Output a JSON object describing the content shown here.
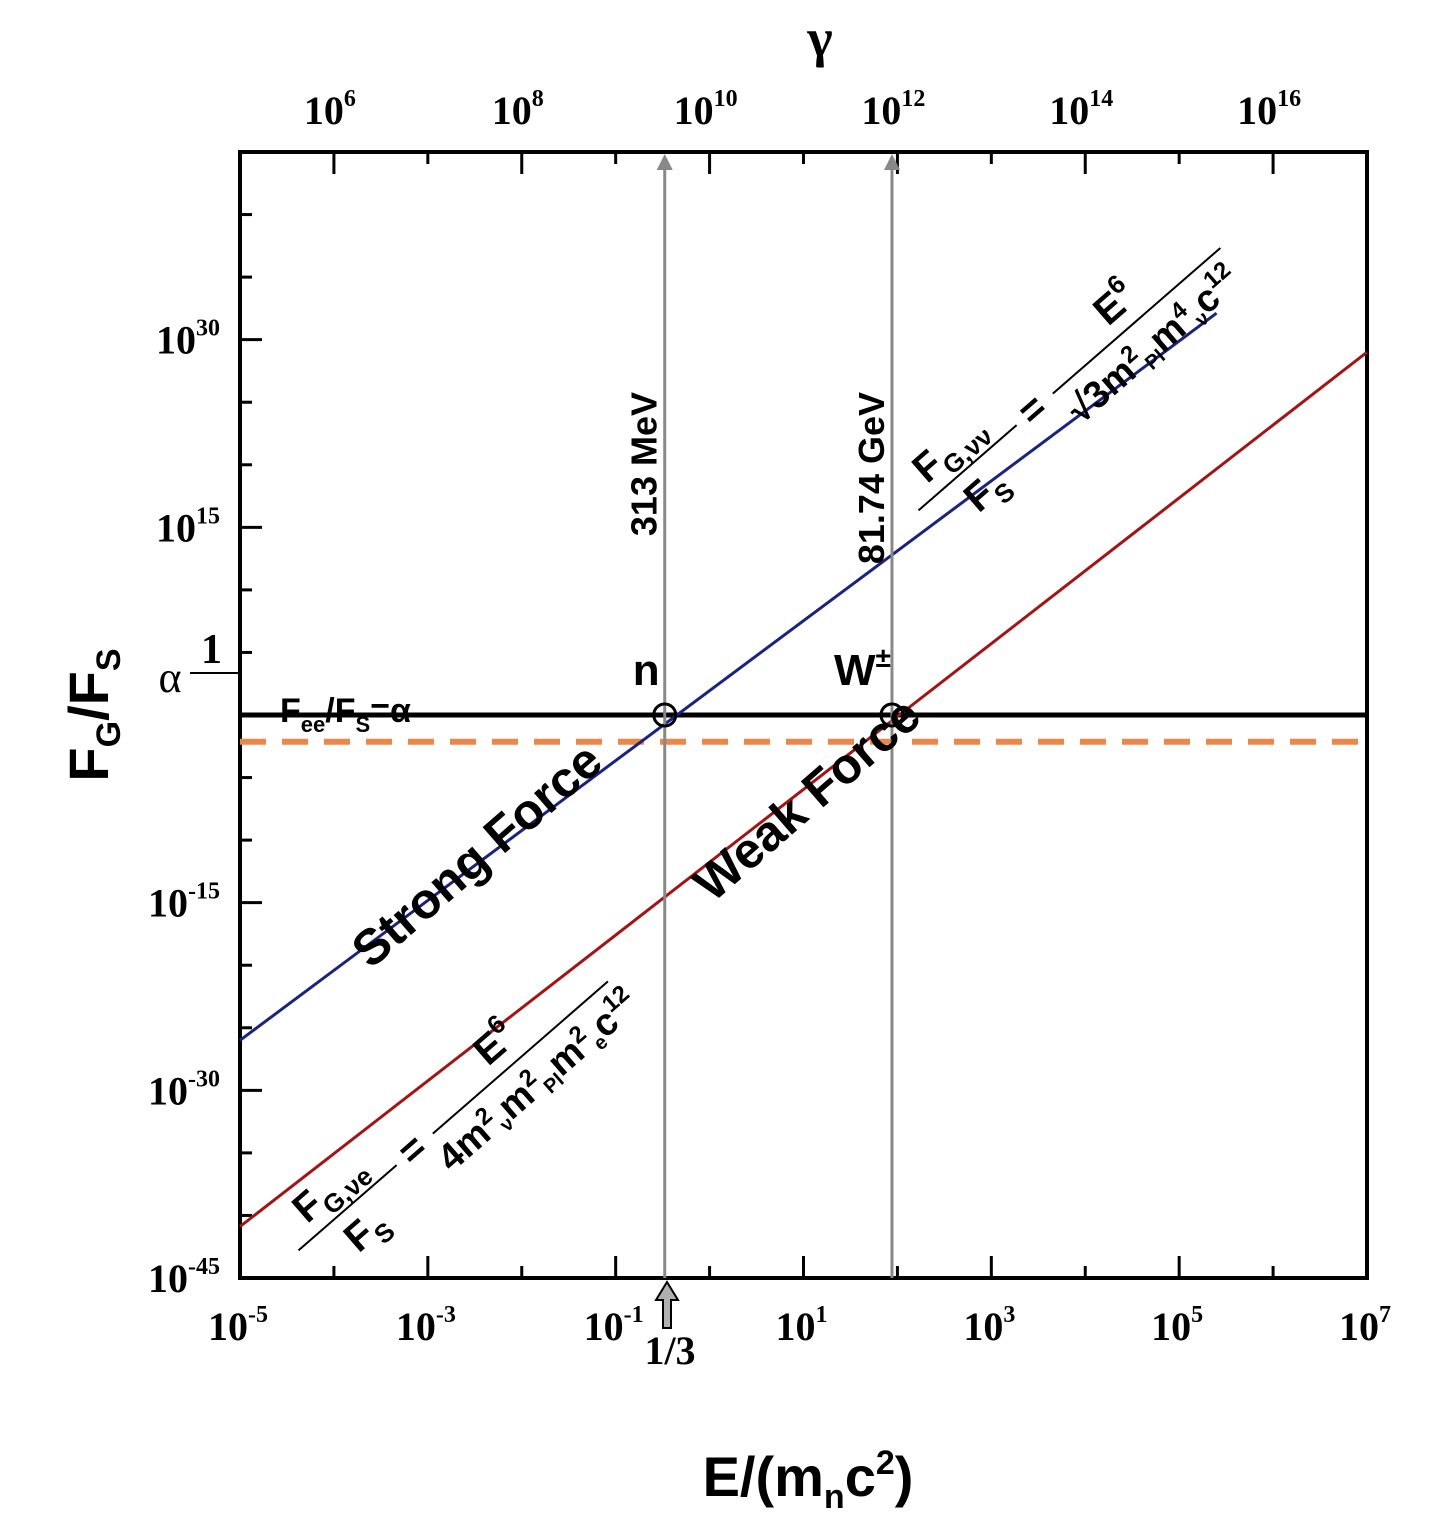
{
  "chart_data": {
    "type": "line",
    "x_scale": "log",
    "y_scale": "log",
    "xlim": [
      1e-05,
      10000000.0
    ],
    "ylim": [
      1e-45,
      1e+45
    ],
    "top_axis_lim": [
      100000.0,
      1e+17
    ],
    "xlabel": "E/(mₙc²)",
    "ylabel": "Fₖ/Fₛ",
    "top_label": "γ",
    "x_ticks": [
      {
        "base": "10",
        "exp": "-5"
      },
      {
        "base": "10",
        "exp": "-3"
      },
      {
        "base": "10",
        "exp": "-1"
      },
      {
        "base": "10",
        "exp": "1"
      },
      {
        "base": "10",
        "exp": "3"
      },
      {
        "base": "10",
        "exp": "5"
      },
      {
        "base": "10",
        "exp": "7"
      }
    ],
    "x_tick_values": [
      1e-05,
      0.001,
      0.1,
      10.0,
      1000.0,
      100000.0,
      10000000.0
    ],
    "top_ticks": [
      {
        "base": "10",
        "exp": "6"
      },
      {
        "base": "10",
        "exp": "8"
      },
      {
        "base": "10",
        "exp": "10"
      },
      {
        "base": "10",
        "exp": "12"
      },
      {
        "base": "10",
        "exp": "14"
      },
      {
        "base": "10",
        "exp": "16"
      }
    ],
    "top_tick_values": [
      1000000.0,
      100000000.0,
      10000000000.0,
      1000000000000.0,
      100000000000000.0,
      1e+16
    ],
    "y_ticks": [
      {
        "base": "10",
        "exp": "-45"
      },
      {
        "base": "10",
        "exp": "-30"
      },
      {
        "base": "10",
        "exp": "-15"
      },
      {
        "base": "10",
        "exp": "15"
      },
      {
        "base": "10",
        "exp": "30"
      }
    ],
    "y_tick_values": [
      1e-45,
      1e-30,
      1e-15,
      1000000000000000.0,
      1e+30
    ],
    "y_one_label": "1",
    "alpha_label": "α",
    "alpha_value": 0.0073,
    "series": [
      {
        "name": "Strong Force",
        "color": "#1a237e",
        "x": [
          1e-05,
          250000.0
        ],
        "y": [
          1e-26,
          1.3e+32
        ]
      },
      {
        "name": "Weak Force",
        "color": "#a31515",
        "x": [
          1e-05,
          10000000.0
        ],
        "y": [
          1.3e-41,
          1e+29
        ]
      }
    ],
    "hline": {
      "y": 1,
      "color": "#000000"
    },
    "alpha_line": {
      "y": 0.0073,
      "color": "#e8884a",
      "label_parts": [
        "F",
        "ee",
        "/F",
        "S",
        "=α"
      ]
    },
    "vlines": [
      {
        "x": 0.333,
        "label": "313 MeV",
        "color": "#888888"
      },
      {
        "x": 87.5,
        "label": "81.74 GeV",
        "color": "#888888"
      }
    ],
    "points": [
      {
        "label": "n",
        "x": 0.333,
        "y": 1
      },
      {
        "label": "W",
        "sup": "±",
        "x": 87.5,
        "y": 1
      }
    ],
    "region_labels": [
      "Strong Force",
      "Weak Force"
    ],
    "marker_label": "1/3",
    "marker_x": 0.333
  }
}
